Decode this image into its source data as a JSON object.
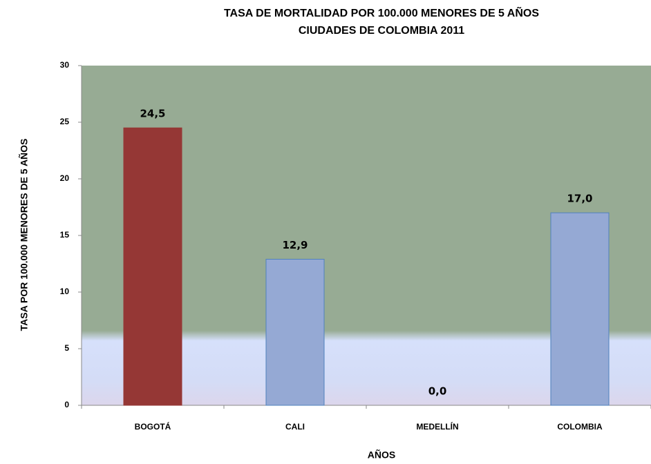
{
  "chart_data": {
    "type": "bar",
    "title": "TASA DE MORTALIDAD  POR 100.000 MENORES DE 5 AÑOS",
    "subtitle": "CIUDADES DE COLOMBIA 2011",
    "x_label": "AÑOS",
    "y_label": "TASA  POR 100.000 MENORES DE 5 AÑOS",
    "categories": [
      "BOGOTÁ",
      "CALI",
      "MEDELLÍN",
      "COLOMBIA"
    ],
    "values": [
      24.5,
      12.9,
      0,
      17.0
    ],
    "value_labels": [
      "24,5",
      "12,9",
      "0,0",
      "17,0"
    ],
    "colors": [
      "#953735",
      "#95a9d4",
      "#95a9d4",
      "#95a9d4"
    ],
    "ylim": [
      0,
      30
    ],
    "yticks": [
      0,
      5,
      10,
      15,
      20,
      25,
      30
    ]
  }
}
